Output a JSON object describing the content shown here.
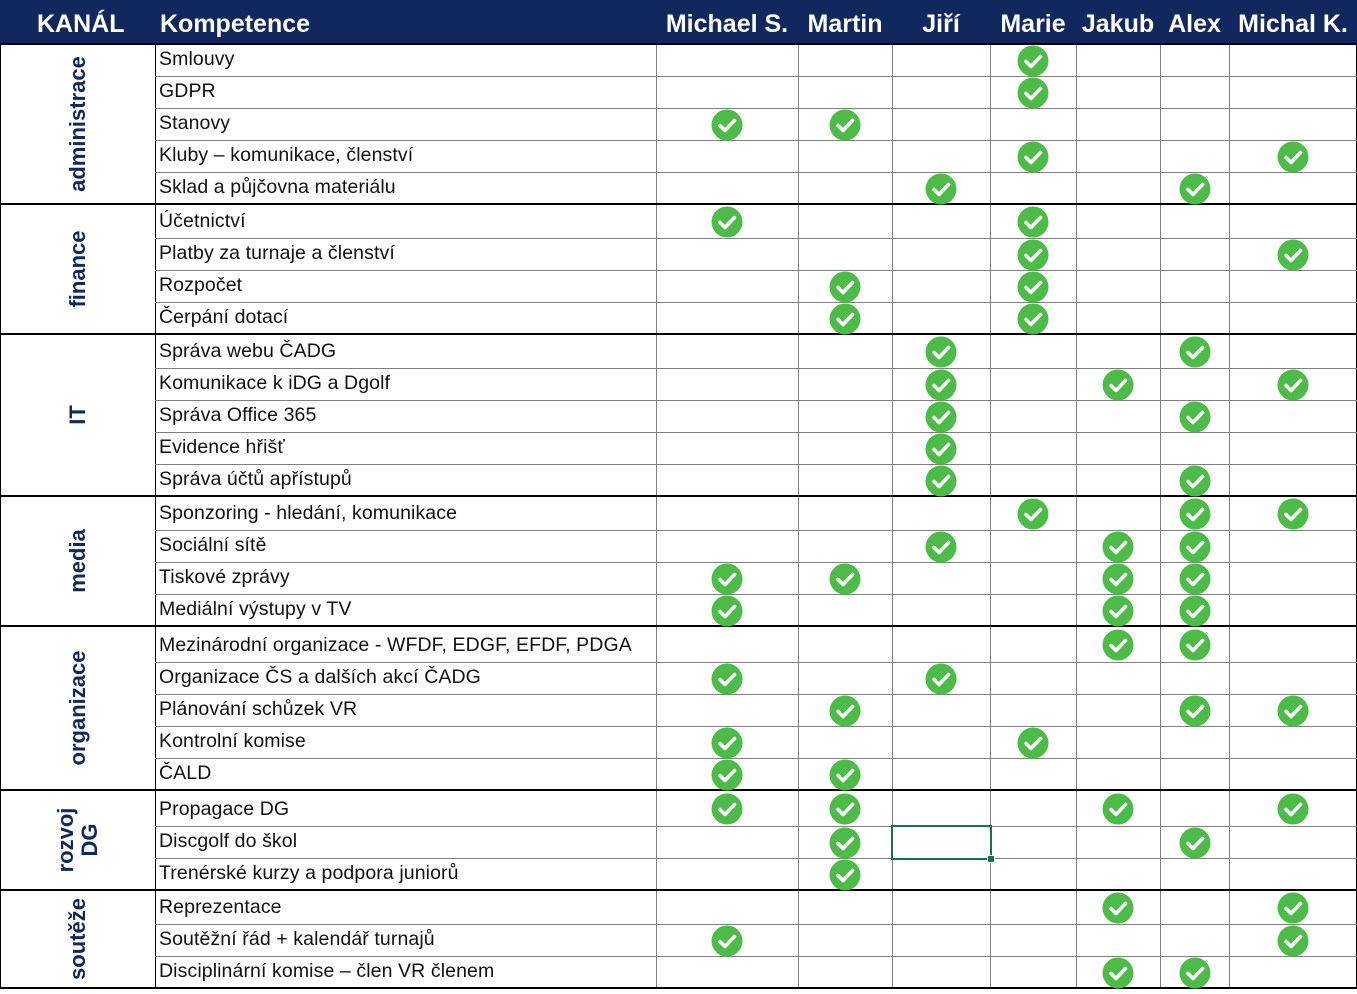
{
  "header": {
    "channel_label": "KANÁL",
    "competence_label": "Kompetence",
    "people": [
      "Michael S.",
      "Martin",
      "Jiří",
      "Marie",
      "Jakub",
      "Alex",
      "Michal K."
    ]
  },
  "colors": {
    "header_bg": "#10285e",
    "header_text": "#ffffff",
    "group_text": "#10285e",
    "check_fill": "#4cbb47",
    "check_mark": "#ffffff",
    "selection": "#1e7145"
  },
  "icons": {
    "check": "check-circle-icon"
  },
  "groups": [
    {
      "name": "administrace",
      "rows": [
        {
          "label": "Smlouvy",
          "checks": [
            false,
            false,
            false,
            true,
            false,
            false,
            false
          ]
        },
        {
          "label": "GDPR",
          "checks": [
            false,
            false,
            false,
            true,
            false,
            false,
            false
          ]
        },
        {
          "label": "Stanovy",
          "checks": [
            true,
            true,
            false,
            false,
            false,
            false,
            false
          ]
        },
        {
          "label": "Kluby – komunikace, členství",
          "checks": [
            false,
            false,
            false,
            true,
            false,
            false,
            true
          ]
        },
        {
          "label": "Sklad a půjčovna materiálu",
          "checks": [
            false,
            false,
            true,
            false,
            false,
            true,
            false
          ]
        }
      ]
    },
    {
      "name": "finance",
      "rows": [
        {
          "label": "Účetnictví",
          "checks": [
            true,
            false,
            false,
            true,
            false,
            false,
            false
          ]
        },
        {
          "label": "Platby za turnaje a členství",
          "checks": [
            false,
            false,
            false,
            true,
            false,
            false,
            true
          ]
        },
        {
          "label": "Rozpočet",
          "checks": [
            false,
            true,
            false,
            true,
            false,
            false,
            false
          ]
        },
        {
          "label": "Čerpání dotací",
          "checks": [
            false,
            true,
            false,
            true,
            false,
            false,
            false
          ]
        }
      ]
    },
    {
      "name": "IT",
      "rows": [
        {
          "label": "Správa webu ČADG",
          "checks": [
            false,
            false,
            true,
            false,
            false,
            true,
            false
          ]
        },
        {
          "label": "Komunikace k iDG a Dgolf",
          "checks": [
            false,
            false,
            true,
            false,
            true,
            false,
            true
          ]
        },
        {
          "label": "Správa Office 365",
          "checks": [
            false,
            false,
            true,
            false,
            false,
            true,
            false
          ]
        },
        {
          "label": "Evidence hřišť",
          "checks": [
            false,
            false,
            true,
            false,
            false,
            false,
            false
          ]
        },
        {
          "label": "Správa účtů apřístupů",
          "checks": [
            false,
            false,
            true,
            false,
            false,
            true,
            false
          ]
        }
      ]
    },
    {
      "name": "media",
      "rows": [
        {
          "label": "Sponzoring - hledání, komunikace",
          "checks": [
            false,
            false,
            false,
            true,
            false,
            true,
            true
          ]
        },
        {
          "label": "Sociální sítě",
          "checks": [
            false,
            false,
            true,
            false,
            true,
            true,
            false
          ]
        },
        {
          "label": "Tiskové zprávy",
          "checks": [
            true,
            true,
            false,
            false,
            true,
            true,
            false
          ]
        },
        {
          "label": "Mediální výstupy v TV",
          "checks": [
            true,
            false,
            false,
            false,
            true,
            true,
            false
          ]
        }
      ]
    },
    {
      "name": "organizace",
      "rows": [
        {
          "label": "Mezinárodní organizace - WFDF, EDGF, EFDF, PDGA",
          "checks": [
            false,
            false,
            false,
            false,
            true,
            true,
            false
          ]
        },
        {
          "label": "Organizace ČS a dalších akcí ČADG",
          "checks": [
            true,
            false,
            true,
            false,
            false,
            false,
            false
          ]
        },
        {
          "label": "Plánování schůzek VR",
          "checks": [
            false,
            true,
            false,
            false,
            false,
            true,
            true
          ]
        },
        {
          "label": "Kontrolní komise",
          "checks": [
            true,
            false,
            false,
            true,
            false,
            false,
            false
          ]
        },
        {
          "label": "ČALD",
          "checks": [
            true,
            true,
            false,
            false,
            false,
            false,
            false
          ]
        }
      ]
    },
    {
      "name": "rozvoj DG",
      "name_lines": [
        "rozvoj",
        "DG"
      ],
      "rows": [
        {
          "label": "Propagace DG",
          "checks": [
            true,
            true,
            false,
            false,
            true,
            false,
            true
          ]
        },
        {
          "label": "Discgolf do škol",
          "checks": [
            false,
            true,
            false,
            false,
            false,
            true,
            false
          ]
        },
        {
          "label": "Trenérské kurzy a podpora juniorů",
          "checks": [
            false,
            true,
            false,
            false,
            false,
            false,
            false
          ]
        }
      ]
    },
    {
      "name": "soutěže",
      "rows": [
        {
          "label": "Reprezentace",
          "checks": [
            false,
            false,
            false,
            false,
            true,
            false,
            true
          ]
        },
        {
          "label": "Soutěžní řád + kalendář turnajů",
          "checks": [
            true,
            false,
            false,
            false,
            false,
            false,
            true
          ]
        },
        {
          "label": "Disciplinární komise – člen VR členem",
          "checks": [
            false,
            false,
            false,
            false,
            true,
            true,
            false
          ]
        }
      ]
    }
  ]
}
